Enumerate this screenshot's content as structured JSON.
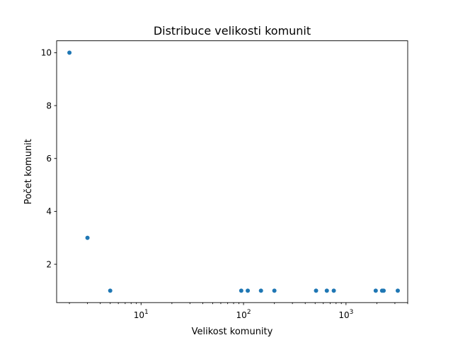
{
  "chart_data": {
    "type": "scatter",
    "title": "Distribuce velikosti komunit",
    "xlabel": "Velikost komunity",
    "ylabel": "Počet komunit",
    "x_scale": "log",
    "xlim": [
      1.5,
      4000
    ],
    "ylim": [
      0.55,
      10.45
    ],
    "x_ticks": [
      {
        "value": 10,
        "base": "10",
        "exp": "1"
      },
      {
        "value": 100,
        "base": "10",
        "exp": "2"
      },
      {
        "value": 1000,
        "base": "10",
        "exp": "3"
      }
    ],
    "y_ticks": [
      2,
      4,
      6,
      8,
      10
    ],
    "grid": false,
    "marker_color": "#1f77b4",
    "points": [
      {
        "x": 2,
        "y": 10
      },
      {
        "x": 3,
        "y": 3
      },
      {
        "x": 5,
        "y": 1
      },
      {
        "x": 95,
        "y": 1
      },
      {
        "x": 110,
        "y": 1
      },
      {
        "x": 148,
        "y": 1
      },
      {
        "x": 200,
        "y": 1
      },
      {
        "x": 510,
        "y": 1
      },
      {
        "x": 650,
        "y": 1
      },
      {
        "x": 760,
        "y": 1
      },
      {
        "x": 1950,
        "y": 1
      },
      {
        "x": 2250,
        "y": 1
      },
      {
        "x": 2330,
        "y": 1
      },
      {
        "x": 3200,
        "y": 1
      }
    ]
  }
}
